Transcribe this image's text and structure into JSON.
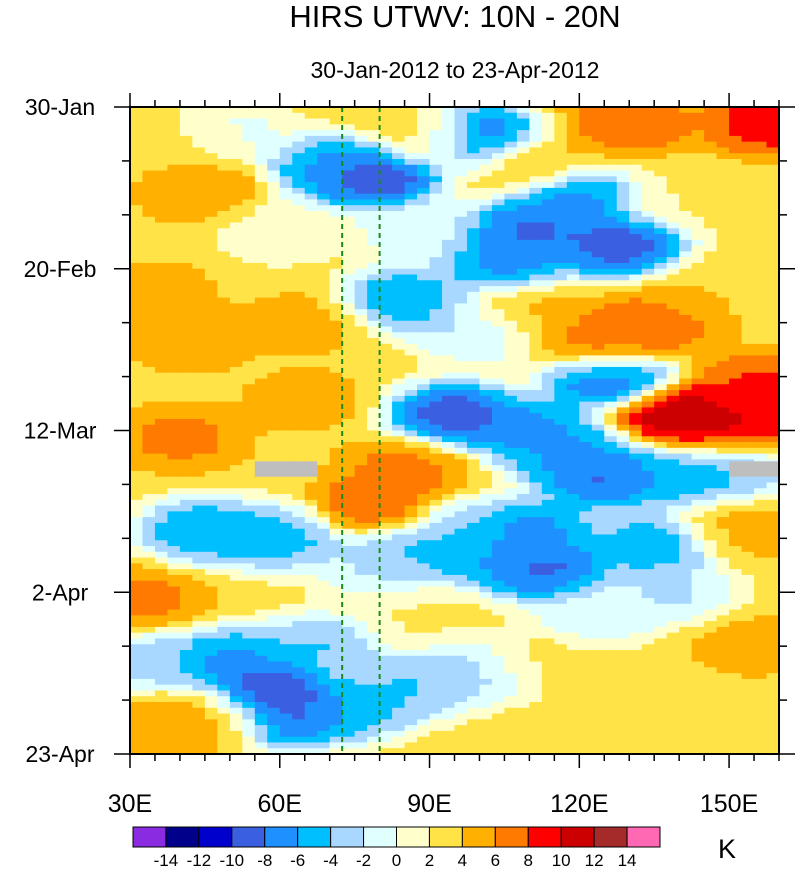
{
  "chart_data": {
    "type": "heatmap",
    "title": "HIRS UTWV: 10N - 20N",
    "subtitle": "30-Jan-2012 to 23-Apr-2012",
    "xlabel": "",
    "ylabel": "",
    "x_range": [
      30,
      160
    ],
    "x_ticks": [
      30,
      60,
      90,
      120,
      150
    ],
    "x_tick_labels": [
      "30E",
      "60E",
      "90E",
      "120E",
      "150E"
    ],
    "y_range_days": [
      0,
      84
    ],
    "y_ticks_days": [
      0,
      21,
      42,
      63,
      84
    ],
    "y_tick_labels": [
      "30-Jan",
      "20-Feb",
      "12-Mar",
      "2-Apr",
      "23-Apr"
    ],
    "reference_lines_lon": [
      72.5,
      80
    ],
    "reference_line_color": "#1a8a1a",
    "missing_regions": [
      {
        "lon": [
          55,
          67.5
        ],
        "day": [
          46,
          48
        ]
      },
      {
        "lon": [
          150,
          160
        ],
        "day": [
          46,
          48
        ]
      }
    ],
    "missing_color": "#bebebe",
    "colorbar": {
      "unit": "K",
      "labels": [
        "-14",
        "-12",
        "-10",
        "-8",
        "-6",
        "-4",
        "-2",
        "0",
        "2",
        "4",
        "6",
        "8",
        "10",
        "12",
        "14"
      ],
      "colors": [
        "#8a2be2",
        "#00008b",
        "#0000cd",
        "#3a5fe0",
        "#1e90ff",
        "#00bfff",
        "#a8d8ff",
        "#e0ffff",
        "#ffffcc",
        "#ffe347",
        "#ffb000",
        "#ff7a00",
        "#ff0000",
        "#cc0000",
        "#a52a2a",
        "#ff69b4"
      ]
    },
    "features": [
      {
        "lon": 40,
        "day": 4,
        "value": 3
      },
      {
        "lon": 45,
        "day": 11,
        "value": 6
      },
      {
        "lon": 35,
        "day": 24,
        "value": 5
      },
      {
        "lon": 42,
        "day": 30,
        "value": 6
      },
      {
        "lon": 40,
        "day": 43,
        "value": 7
      },
      {
        "lon": 65,
        "day": 38,
        "value": 5
      },
      {
        "lon": 80,
        "day": 52,
        "value": 9
      },
      {
        "lon": 85,
        "day": 47,
        "value": 7
      },
      {
        "lon": 65,
        "day": 28,
        "value": 5
      },
      {
        "lon": 90,
        "day": 4,
        "value": 4
      },
      {
        "lon": 130,
        "day": 2,
        "value": 8
      },
      {
        "lon": 158,
        "day": 2,
        "value": 10
      },
      {
        "lon": 110,
        "day": 7,
        "value": 5
      },
      {
        "lon": 125,
        "day": 31,
        "value": 9
      },
      {
        "lon": 135,
        "day": 28,
        "value": 8
      },
      {
        "lon": 140,
        "day": 40,
        "value": 13
      },
      {
        "lon": 150,
        "day": 42,
        "value": 11
      },
      {
        "lon": 156,
        "day": 36,
        "value": 9
      },
      {
        "lon": 110,
        "day": 27,
        "value": 5
      },
      {
        "lon": 152,
        "day": 55,
        "value": 5
      },
      {
        "lon": 155,
        "day": 70,
        "value": 5
      },
      {
        "lon": 32,
        "day": 64,
        "value": 7
      },
      {
        "lon": 38,
        "day": 80,
        "value": 6
      },
      {
        "lon": 48,
        "day": 79,
        "value": 5
      },
      {
        "lon": 135,
        "day": 76,
        "value": 4
      },
      {
        "lon": 88,
        "day": 66,
        "value": 2
      },
      {
        "lon": 110,
        "day": 72,
        "value": 3
      },
      {
        "lon": 79,
        "day": 9,
        "value": -12
      },
      {
        "lon": 70,
        "day": 8,
        "value": -7
      },
      {
        "lon": 100,
        "day": 4,
        "value": -11
      },
      {
        "lon": 110,
        "day": 16,
        "value": -10
      },
      {
        "lon": 128,
        "day": 18,
        "value": -11
      },
      {
        "lon": 120,
        "day": 12,
        "value": -8
      },
      {
        "lon": 105,
        "day": 20,
        "value": -8
      },
      {
        "lon": 85,
        "day": 25,
        "value": -7
      },
      {
        "lon": 95,
        "day": 40,
        "value": -11
      },
      {
        "lon": 110,
        "day": 42,
        "value": -8
      },
      {
        "lon": 126,
        "day": 35,
        "value": -10
      },
      {
        "lon": 118,
        "day": 45,
        "value": -7
      },
      {
        "lon": 125,
        "day": 48,
        "value": -10
      },
      {
        "lon": 140,
        "day": 48,
        "value": -6
      },
      {
        "lon": 85,
        "day": 58,
        "value": -6
      },
      {
        "lon": 100,
        "day": 58,
        "value": -7
      },
      {
        "lon": 113,
        "day": 60,
        "value": -10
      },
      {
        "lon": 110,
        "day": 55,
        "value": -8
      },
      {
        "lon": 45,
        "day": 55,
        "value": -7
      },
      {
        "lon": 60,
        "day": 56,
        "value": -6
      },
      {
        "lon": 135,
        "day": 57,
        "value": -7
      },
      {
        "lon": 150,
        "day": 47,
        "value": -5
      },
      {
        "lon": 57,
        "day": 76,
        "value": -13
      },
      {
        "lon": 62,
        "day": 79,
        "value": -10
      },
      {
        "lon": 50,
        "day": 72,
        "value": -8
      },
      {
        "lon": 75,
        "day": 78,
        "value": -6
      },
      {
        "lon": 68,
        "day": 70,
        "value": -5
      },
      {
        "lon": 87,
        "day": 75,
        "value": -5
      },
      {
        "lon": 100,
        "day": 73,
        "value": -4
      },
      {
        "lon": 35,
        "day": 72,
        "value": -4
      },
      {
        "lon": 80,
        "day": 60,
        "value": -2
      },
      {
        "lon": 138,
        "day": 63,
        "value": -3
      },
      {
        "lon": 123,
        "day": 66,
        "value": -2
      },
      {
        "lon": 100,
        "day": 29,
        "value": -3
      },
      {
        "lon": 88,
        "day": 16,
        "value": -2
      },
      {
        "lon": 60,
        "day": 16,
        "value": 0
      },
      {
        "lon": 140,
        "day": 12,
        "value": 2
      },
      {
        "lon": 145,
        "day": 24,
        "value": 4
      },
      {
        "lon": 50,
        "day": 3,
        "value": -1
      },
      {
        "lon": 95,
        "day": 55,
        "value": -4
      }
    ]
  }
}
